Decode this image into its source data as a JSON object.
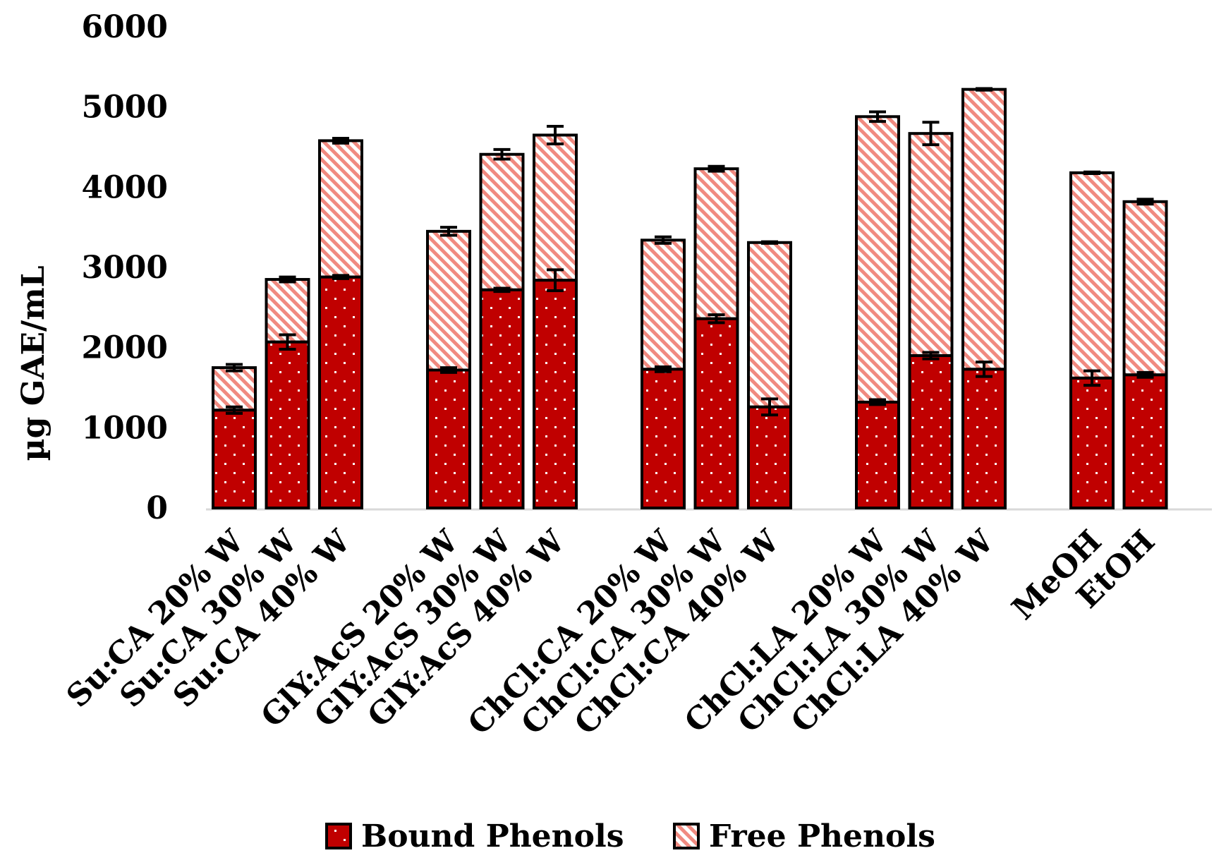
{
  "chart_data": {
    "type": "bar",
    "stacked": true,
    "title": "",
    "xlabel": "",
    "ylabel": "µg GAE/mL",
    "ylim": [
      0,
      6000
    ],
    "yticks": [
      0,
      1000,
      2000,
      3000,
      4000,
      5000,
      6000
    ],
    "grid": false,
    "legend_position": "bottom",
    "categories": [
      "Su:CA 20% W",
      "Su:CA 30% W",
      "Su:CA 40% W",
      "GlY:AcS 20% W",
      "GlY:AcS 30% W",
      "GlY:AcS 40% W",
      "ChCl:CA 20% W",
      "ChCl:CA 30% W",
      "ChCl:CA 40% W",
      "ChCl:LA 20% W",
      "ChCl:LA 30% W",
      "ChCl:LA 40% W",
      "MeOH",
      "EtOH"
    ],
    "groups": [
      3,
      3,
      3,
      3,
      2
    ],
    "series": [
      {
        "name": "Bound Phenols",
        "color": "#c00000",
        "pattern": "white-dots",
        "values": [
          1220,
          2070,
          2880,
          1720,
          2720,
          2840,
          1730,
          2360,
          1260,
          1320,
          1900,
          1730,
          1620,
          1660
        ],
        "errors": [
          40,
          90,
          20,
          30,
          20,
          130,
          30,
          50,
          100,
          30,
          40,
          90,
          90,
          30
        ]
      },
      {
        "name": "Free Phenols",
        "color": "#f4b6b0",
        "pattern": "diagonal-stripes",
        "values": [
          530,
          780,
          1700,
          1730,
          1690,
          1810,
          1610,
          1870,
          2050,
          3560,
          2770,
          3490,
          2560,
          2160
        ],
        "errors": [
          40,
          30,
          30,
          50,
          60,
          110,
          40,
          30,
          10,
          60,
          140,
          10,
          10,
          30
        ]
      }
    ]
  }
}
